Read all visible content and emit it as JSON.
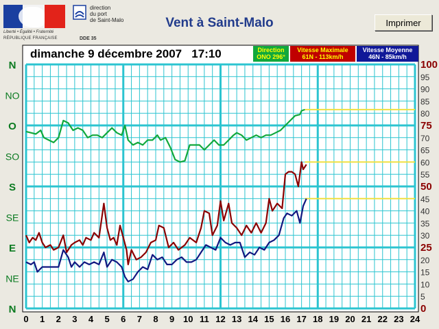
{
  "header": {
    "logo_motto": "Liberté • Égalité • Fraternité",
    "logo_republic": "RÉPUBLIQUE FRANÇAISE",
    "port_text": "direction\ndu port\nde Saint-Malo",
    "port_dde": "DDE 35",
    "title": "Vent à Saint-Malo",
    "print_label": "Imprimer"
  },
  "colors": {
    "direction": "#11a83c",
    "max": "#8b0000",
    "avg": "#101880",
    "grid": "#2cc4d0",
    "forecast": "#f0e040",
    "left_green": "#0a7a20",
    "right_red": "#8b0000"
  },
  "chart_data": {
    "type": "line",
    "title": "dimanche 9 décembre 2007   17:10",
    "legend": [
      {
        "line1": "Direction",
        "line2": "ONO 296°"
      },
      {
        "line1": "Vitesse Maximale",
        "line2": "61N - 113km/h"
      },
      {
        "line1": "Vitesse Moyenne",
        "line2": "46N - 85km/h"
      }
    ],
    "xlim": [
      0,
      24
    ],
    "ylim": [
      0,
      100
    ],
    "x_ticks": [
      "0",
      "1",
      "2",
      "3",
      "4",
      "5",
      "6",
      "7",
      "8",
      "9",
      "10",
      "11",
      "12",
      "13",
      "14",
      "15",
      "16",
      "17",
      "18",
      "19",
      "20",
      "21",
      "22",
      "23",
      "24"
    ],
    "y_ticks_right": [
      {
        "v": 100,
        "label": "100",
        "major": true
      },
      {
        "v": 95,
        "label": "95",
        "major": false
      },
      {
        "v": 90,
        "label": "90",
        "major": false
      },
      {
        "v": 85,
        "label": "85",
        "major": false
      },
      {
        "v": 80,
        "label": "80",
        "major": false
      },
      {
        "v": 75,
        "label": "75",
        "major": true
      },
      {
        "v": 70,
        "label": "70",
        "major": false
      },
      {
        "v": 65,
        "label": "65",
        "major": false
      },
      {
        "v": 60,
        "label": "60",
        "major": false
      },
      {
        "v": 55,
        "label": "55",
        "major": false
      },
      {
        "v": 50,
        "label": "50",
        "major": true
      },
      {
        "v": 45,
        "label": "45",
        "major": false
      },
      {
        "v": 40,
        "label": "40",
        "major": false
      },
      {
        "v": 35,
        "label": "35",
        "major": false
      },
      {
        "v": 30,
        "label": "30",
        "major": false
      },
      {
        "v": 25,
        "label": "25",
        "major": true
      },
      {
        "v": 20,
        "label": "20",
        "major": false
      },
      {
        "v": 15,
        "label": "15",
        "major": false
      },
      {
        "v": 10,
        "label": "10",
        "major": false
      },
      {
        "v": 5,
        "label": "5",
        "major": false
      },
      {
        "v": 0,
        "label": "0",
        "major": true
      }
    ],
    "y_ticks_left": [
      {
        "v": 100,
        "label": "N",
        "major": true
      },
      {
        "v": 87.5,
        "label": "NO",
        "major": false
      },
      {
        "v": 75,
        "label": "O",
        "major": true
      },
      {
        "v": 62.5,
        "label": "SO",
        "major": false
      },
      {
        "v": 50,
        "label": "S",
        "major": true
      },
      {
        "v": 37.5,
        "label": "SE",
        "major": false
      },
      {
        "v": 25,
        "label": "E",
        "major": true
      },
      {
        "v": 12.5,
        "label": "NE",
        "major": false
      },
      {
        "v": 0,
        "label": "N",
        "major": true
      }
    ],
    "series": [
      {
        "key": "direction",
        "points": [
          [
            0,
            72.5
          ],
          [
            0.3,
            72
          ],
          [
            0.6,
            71.5
          ],
          [
            0.9,
            73
          ],
          [
            1.1,
            70
          ],
          [
            1.4,
            69
          ],
          [
            1.7,
            68
          ],
          [
            2.0,
            70
          ],
          [
            2.3,
            77
          ],
          [
            2.6,
            76
          ],
          [
            2.9,
            73
          ],
          [
            3.2,
            74
          ],
          [
            3.5,
            73
          ],
          [
            3.8,
            70
          ],
          [
            4.1,
            71
          ],
          [
            4.4,
            71
          ],
          [
            4.7,
            70
          ],
          [
            5.0,
            72
          ],
          [
            5.3,
            74
          ],
          [
            5.6,
            72
          ],
          [
            5.9,
            71
          ],
          [
            6.1,
            75
          ],
          [
            6.3,
            69
          ],
          [
            6.6,
            67
          ],
          [
            6.9,
            68
          ],
          [
            7.2,
            67
          ],
          [
            7.5,
            69
          ],
          [
            7.8,
            69
          ],
          [
            8.1,
            71
          ],
          [
            8.3,
            69
          ],
          [
            8.6,
            70
          ],
          [
            8.9,
            66
          ],
          [
            9.2,
            61
          ],
          [
            9.5,
            60
          ],
          [
            9.8,
            60.5
          ],
          [
            10.1,
            67
          ],
          [
            10.4,
            67
          ],
          [
            10.7,
            67
          ],
          [
            11.0,
            65
          ],
          [
            11.3,
            67
          ],
          [
            11.6,
            69
          ],
          [
            11.9,
            67
          ],
          [
            12.2,
            67
          ],
          [
            12.5,
            69
          ],
          [
            12.8,
            71
          ],
          [
            13.0,
            72
          ],
          [
            13.3,
            71
          ],
          [
            13.6,
            69
          ],
          [
            13.9,
            70
          ],
          [
            14.2,
            71
          ],
          [
            14.5,
            70
          ],
          [
            14.8,
            71
          ],
          [
            15.1,
            71
          ],
          [
            15.4,
            72
          ],
          [
            15.7,
            73
          ],
          [
            16.0,
            75
          ],
          [
            16.3,
            77
          ],
          [
            16.6,
            79
          ],
          [
            16.9,
            79.5
          ],
          [
            17.0,
            81
          ],
          [
            17.2,
            81.5
          ]
        ]
      },
      {
        "key": "max",
        "points": [
          [
            0,
            30
          ],
          [
            0.2,
            27
          ],
          [
            0.4,
            29
          ],
          [
            0.6,
            28
          ],
          [
            0.8,
            31
          ],
          [
            1.0,
            27
          ],
          [
            1.2,
            25
          ],
          [
            1.5,
            26
          ],
          [
            1.7,
            24
          ],
          [
            2.0,
            25
          ],
          [
            2.3,
            30
          ],
          [
            2.5,
            23
          ],
          [
            2.8,
            26
          ],
          [
            3.0,
            27
          ],
          [
            3.3,
            28
          ],
          [
            3.5,
            26
          ],
          [
            3.7,
            29
          ],
          [
            4.0,
            28
          ],
          [
            4.2,
            31
          ],
          [
            4.5,
            29
          ],
          [
            4.8,
            43
          ],
          [
            5.0,
            33
          ],
          [
            5.2,
            28
          ],
          [
            5.4,
            29
          ],
          [
            5.6,
            26
          ],
          [
            5.8,
            34
          ],
          [
            6.0,
            29
          ],
          [
            6.2,
            24
          ],
          [
            6.3,
            18
          ],
          [
            6.5,
            24
          ],
          [
            6.8,
            20
          ],
          [
            7.1,
            21
          ],
          [
            7.4,
            23
          ],
          [
            7.7,
            27
          ],
          [
            8.0,
            28
          ],
          [
            8.2,
            34
          ],
          [
            8.5,
            33
          ],
          [
            8.8,
            25
          ],
          [
            9.1,
            27
          ],
          [
            9.4,
            24
          ],
          [
            9.8,
            26
          ],
          [
            10.1,
            29
          ],
          [
            10.5,
            27
          ],
          [
            10.8,
            33
          ],
          [
            11.0,
            40
          ],
          [
            11.3,
            39
          ],
          [
            11.5,
            30
          ],
          [
            11.8,
            34
          ],
          [
            12.0,
            44
          ],
          [
            12.2,
            36
          ],
          [
            12.5,
            43
          ],
          [
            12.7,
            35
          ],
          [
            13.0,
            33
          ],
          [
            13.3,
            30
          ],
          [
            13.6,
            34
          ],
          [
            13.9,
            31
          ],
          [
            14.2,
            35
          ],
          [
            14.5,
            31
          ],
          [
            14.8,
            35
          ],
          [
            15.0,
            45
          ],
          [
            15.2,
            40
          ],
          [
            15.5,
            43
          ],
          [
            15.8,
            41
          ],
          [
            16.0,
            55
          ],
          [
            16.2,
            56
          ],
          [
            16.4,
            56
          ],
          [
            16.6,
            55
          ],
          [
            16.8,
            50
          ],
          [
            17.0,
            60
          ],
          [
            17.1,
            57
          ],
          [
            17.3,
            59
          ]
        ]
      },
      {
        "key": "avg",
        "points": [
          [
            0,
            19
          ],
          [
            0.3,
            18
          ],
          [
            0.5,
            19
          ],
          [
            0.7,
            15
          ],
          [
            1.0,
            17
          ],
          [
            1.3,
            17
          ],
          [
            1.6,
            17
          ],
          [
            2.0,
            17
          ],
          [
            2.3,
            24
          ],
          [
            2.6,
            21
          ],
          [
            2.8,
            17
          ],
          [
            3.0,
            19
          ],
          [
            3.3,
            17
          ],
          [
            3.6,
            19
          ],
          [
            3.9,
            18
          ],
          [
            4.2,
            19
          ],
          [
            4.5,
            18
          ],
          [
            4.8,
            23
          ],
          [
            5.0,
            17
          ],
          [
            5.3,
            20
          ],
          [
            5.6,
            19
          ],
          [
            5.9,
            17
          ],
          [
            6.1,
            13
          ],
          [
            6.3,
            11
          ],
          [
            6.6,
            12
          ],
          [
            6.9,
            15
          ],
          [
            7.2,
            17
          ],
          [
            7.5,
            16
          ],
          [
            7.8,
            22
          ],
          [
            8.1,
            20
          ],
          [
            8.4,
            21
          ],
          [
            8.7,
            18
          ],
          [
            9.0,
            18
          ],
          [
            9.3,
            20
          ],
          [
            9.6,
            21
          ],
          [
            9.9,
            19
          ],
          [
            10.2,
            19
          ],
          [
            10.5,
            20
          ],
          [
            10.8,
            23
          ],
          [
            11.1,
            26
          ],
          [
            11.4,
            25
          ],
          [
            11.7,
            24
          ],
          [
            12.0,
            29
          ],
          [
            12.3,
            27
          ],
          [
            12.6,
            26
          ],
          [
            12.9,
            27
          ],
          [
            13.2,
            27
          ],
          [
            13.5,
            21
          ],
          [
            13.8,
            23
          ],
          [
            14.1,
            22
          ],
          [
            14.4,
            25
          ],
          [
            14.7,
            24
          ],
          [
            15.0,
            27
          ],
          [
            15.3,
            28
          ],
          [
            15.6,
            30
          ],
          [
            15.9,
            37
          ],
          [
            16.1,
            39
          ],
          [
            16.4,
            38
          ],
          [
            16.7,
            40
          ],
          [
            16.9,
            35
          ],
          [
            17.1,
            42
          ],
          [
            17.3,
            45
          ]
        ]
      }
    ],
    "forecast_levels": [
      {
        "key": "direction",
        "from": 17.2,
        "to": 24,
        "value": 81.5
      },
      {
        "key": "max",
        "from": 17.2,
        "to": 24,
        "value": 60
      },
      {
        "key": "avg",
        "from": 17.2,
        "to": 24,
        "value": 45
      }
    ]
  }
}
